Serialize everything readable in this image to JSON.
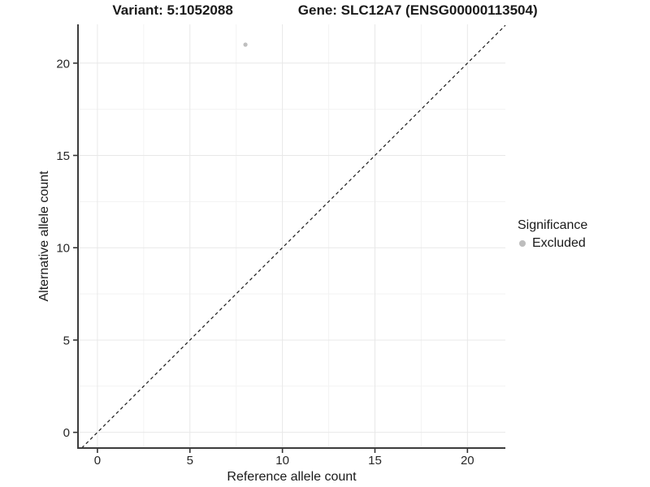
{
  "title": {
    "variant_label": "Variant: 5:1052088",
    "gene_label": "Gene: SLC12A7 (ENSG00000113504)"
  },
  "axes": {
    "x_label": "Reference allele count",
    "y_label": "Alternative allele count"
  },
  "legend": {
    "title": "Significance",
    "items": [
      {
        "label": "Excluded",
        "marker": "circle-icon",
        "color": "#bdbdbd"
      }
    ]
  },
  "colors": {
    "background": "#ffffff",
    "grid_major": "#e8e8e8",
    "grid_minor": "#f3f3f3",
    "axis_line": "#3c3c3c",
    "tick": "#333333",
    "text": "#1a1a1a",
    "point": "#bfbfbf",
    "reference_line": "#1a1a1a"
  },
  "chart_data": {
    "type": "scatter",
    "title": "Variant: 5:1052088   Gene: SLC12A7 (ENSG00000113504)",
    "xlabel": "Reference allele count",
    "ylabel": "Alternative allele count",
    "xlim": [
      -1.05,
      22.05
    ],
    "ylim": [
      -0.85,
      22.1
    ],
    "x_ticks": [
      0,
      5,
      10,
      15,
      20
    ],
    "y_ticks": [
      0,
      5,
      10,
      15,
      20
    ],
    "x_minor_ticks": [
      2.5,
      7.5,
      12.5,
      17.5
    ],
    "y_minor_ticks": [
      2.5,
      7.5,
      12.5,
      17.5
    ],
    "grid": "major+minor",
    "legend_position": "right-middle",
    "series": [
      {
        "name": "Excluded",
        "color": "#bfbfbf",
        "points": [
          {
            "x": 8,
            "y": 21
          }
        ]
      }
    ],
    "reference_line": {
      "kind": "identity",
      "slope": 1,
      "intercept": 0,
      "style": "dashed",
      "color": "#1a1a1a"
    }
  }
}
